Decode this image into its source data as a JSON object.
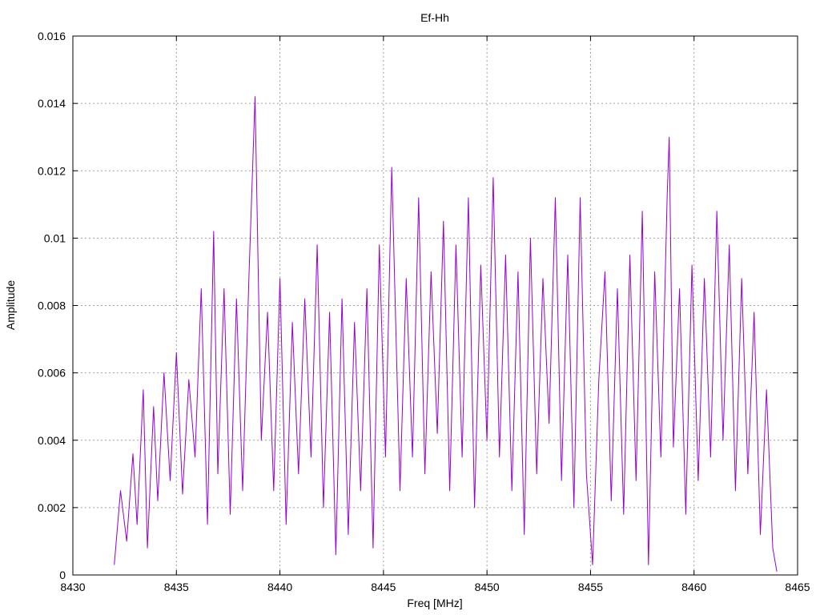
{
  "chart_data": {
    "type": "line",
    "title": "Ef-Hh",
    "xlabel": "Freq [MHz]",
    "ylabel": "Amplitude",
    "xlim": [
      8430,
      8465
    ],
    "ylim": [
      0,
      0.016
    ],
    "xticks": [
      8430,
      8435,
      8440,
      8445,
      8450,
      8455,
      8460,
      8465
    ],
    "xtick_labels": [
      "8430",
      "8435",
      "8440",
      "8445",
      "8450",
      "8455",
      "8460",
      "8465"
    ],
    "yticks": [
      0,
      0.002,
      0.004,
      0.006,
      0.008,
      0.01,
      0.012,
      0.014,
      0.016
    ],
    "ytick_labels": [
      "0",
      "0.002",
      "0.004",
      "0.006",
      "0.008",
      "0.01",
      "0.012",
      "0.014",
      "0.016"
    ],
    "grid": true,
    "series": [
      {
        "color": "#9400d3",
        "x": [
          8432.0,
          8432.3,
          8432.6,
          8432.9,
          8433.1,
          8433.4,
          8433.6,
          8433.9,
          8434.1,
          8434.4,
          8434.7,
          8435.0,
          8435.3,
          8435.6,
          8435.9,
          8436.2,
          8436.5,
          8436.8,
          8437.0,
          8437.3,
          8437.6,
          8437.9,
          8438.2,
          8438.5,
          8438.8,
          8439.1,
          8439.4,
          8439.7,
          8440.0,
          8440.3,
          8440.6,
          8440.9,
          8441.2,
          8441.5,
          8441.8,
          8442.1,
          8442.4,
          8442.7,
          8443.0,
          8443.3,
          8443.6,
          8443.9,
          8444.2,
          8444.5,
          8444.8,
          8445.1,
          8445.4,
          8445.8,
          8446.1,
          8446.4,
          8446.7,
          8447.0,
          8447.3,
          8447.6,
          8447.9,
          8448.2,
          8448.5,
          8448.8,
          8449.1,
          8449.4,
          8449.7,
          8450.0,
          8450.3,
          8450.6,
          8450.9,
          8451.2,
          8451.5,
          8451.8,
          8452.1,
          8452.4,
          8452.7,
          8453.0,
          8453.3,
          8453.6,
          8453.9,
          8454.2,
          8454.5,
          8454.8,
          8455.1,
          8455.4,
          8455.7,
          8456.0,
          8456.3,
          8456.6,
          8456.9,
          8457.2,
          8457.5,
          8457.8,
          8458.1,
          8458.4,
          8458.7,
          8458.8,
          8459.0,
          8459.3,
          8459.6,
          8459.9,
          8460.2,
          8460.5,
          8460.8,
          8461.1,
          8461.4,
          8461.7,
          8462.0,
          8462.3,
          8462.6,
          8462.9,
          8463.2,
          8463.5,
          8463.8,
          8464.0
        ],
        "y": [
          0.0003,
          0.0025,
          0.001,
          0.0036,
          0.0015,
          0.0055,
          0.0008,
          0.005,
          0.0022,
          0.006,
          0.0028,
          0.0066,
          0.0024,
          0.0058,
          0.0035,
          0.0085,
          0.0015,
          0.0102,
          0.003,
          0.0085,
          0.0018,
          0.0082,
          0.0025,
          0.0088,
          0.0142,
          0.004,
          0.0078,
          0.0025,
          0.0088,
          0.0015,
          0.0075,
          0.003,
          0.0082,
          0.0035,
          0.0098,
          0.002,
          0.0078,
          0.0006,
          0.0082,
          0.0012,
          0.0075,
          0.0025,
          0.0085,
          0.0008,
          0.0098,
          0.0035,
          0.0121,
          0.0025,
          0.0088,
          0.0035,
          0.0112,
          0.003,
          0.009,
          0.0042,
          0.0105,
          0.0025,
          0.0098,
          0.0035,
          0.0112,
          0.002,
          0.0092,
          0.004,
          0.0118,
          0.0035,
          0.0095,
          0.0025,
          0.009,
          0.0012,
          0.01,
          0.003,
          0.0088,
          0.0045,
          0.0112,
          0.0028,
          0.0095,
          0.002,
          0.0112,
          0.003,
          0.0003,
          0.0058,
          0.009,
          0.0022,
          0.0085,
          0.0018,
          0.0095,
          0.0028,
          0.0108,
          0.0003,
          0.009,
          0.0035,
          0.0112,
          0.013,
          0.0038,
          0.0085,
          0.0018,
          0.0092,
          0.0028,
          0.0088,
          0.0035,
          0.0108,
          0.004,
          0.0098,
          0.0025,
          0.0088,
          0.003,
          0.0078,
          0.0012,
          0.0055,
          0.0008,
          0.0001
        ]
      }
    ]
  }
}
